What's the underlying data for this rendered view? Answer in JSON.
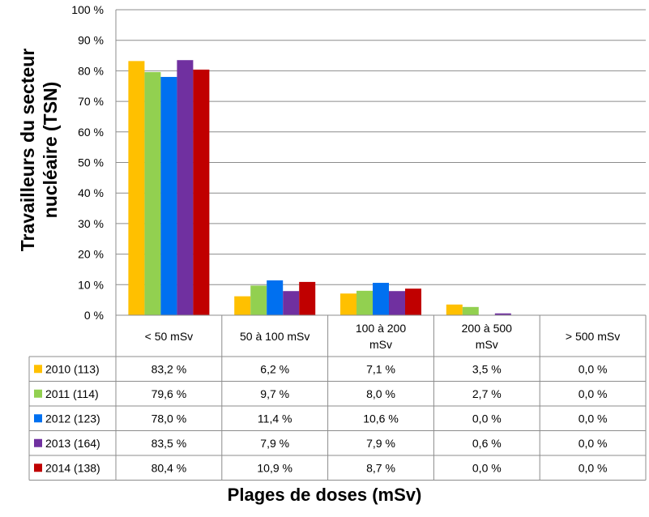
{
  "chart_data": {
    "type": "bar",
    "ylabel": "Travailleurs du secteur nucléaire (TSN)",
    "xlabel": "Plages de doses (mSv)",
    "ylim": [
      0,
      100
    ],
    "yticks": [
      "0 %",
      "10 %",
      "20 %",
      "30 %",
      "40 %",
      "50 %",
      "60 %",
      "70 %",
      "80 %",
      "90 %",
      "100 %"
    ],
    "categories": [
      "< 50 mSv",
      "50 à 100 mSv",
      "100 à 200 mSv",
      "200 à 500 mSv",
      "> 500 mSv"
    ],
    "category_lines": [
      [
        "< 50 mSv"
      ],
      [
        "50 à 100 mSv"
      ],
      [
        "100 à 200",
        "mSv"
      ],
      [
        "200 à 500",
        "mSv"
      ],
      [
        "> 500 mSv"
      ]
    ],
    "grid": true,
    "legend": "table-below",
    "series": [
      {
        "name": "2010 (113)",
        "color": "#FFC000",
        "values": [
          83.2,
          6.2,
          7.1,
          3.5,
          0.0
        ],
        "labels": [
          "83,2 %",
          "6,2 %",
          "7,1 %",
          "3,5 %",
          "0,0 %"
        ]
      },
      {
        "name": "2011 (114)",
        "color": "#92D050",
        "values": [
          79.6,
          9.7,
          8.0,
          2.7,
          0.0
        ],
        "labels": [
          "79,6 %",
          "9,7 %",
          "8,0 %",
          "2,7 %",
          "0,0 %"
        ]
      },
      {
        "name": "2012 (123)",
        "color": "#0070F0",
        "values": [
          78.0,
          11.4,
          10.6,
          0.0,
          0.0
        ],
        "labels": [
          "78,0 %",
          "11,4 %",
          "10,6 %",
          "0,0 %",
          "0,0 %"
        ]
      },
      {
        "name": "2013 (164)",
        "color": "#7030A0",
        "values": [
          83.5,
          7.9,
          7.9,
          0.6,
          0.0
        ],
        "labels": [
          "83,5 %",
          "7,9 %",
          "7,9 %",
          "0,6 %",
          "0,0 %"
        ]
      },
      {
        "name": "2014 (138)",
        "color": "#C00000",
        "values": [
          80.4,
          10.9,
          8.7,
          0.0,
          0.0
        ],
        "labels": [
          "80,4 %",
          "10,9 %",
          "8,7 %",
          "0,0 %",
          "0,0 %"
        ]
      }
    ]
  }
}
